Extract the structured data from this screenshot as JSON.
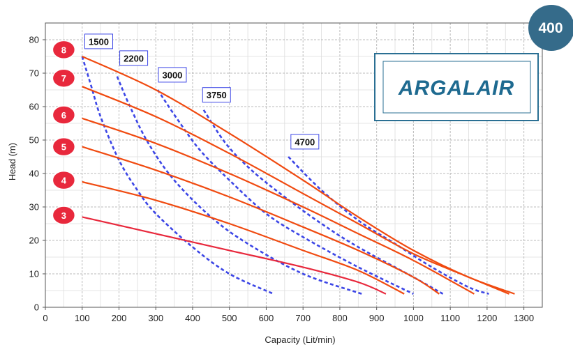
{
  "chart_data": {
    "type": "line",
    "title": "",
    "xlabel": "Capacity (Lit/min)",
    "ylabel": "Head (m)",
    "xlim": [
      0,
      1350
    ],
    "ylim": [
      0,
      85
    ],
    "x_ticks": [
      0,
      100,
      200,
      300,
      400,
      500,
      600,
      700,
      800,
      900,
      1000,
      1100,
      1200,
      1300
    ],
    "y_ticks": [
      0,
      10,
      20,
      30,
      40,
      50,
      60,
      70,
      80
    ],
    "grid": true,
    "series": [
      {
        "name": "8",
        "kind": "pressure",
        "color": "#f04a10",
        "x": [
          100,
          300,
          500,
          700,
          850,
          1000,
          1150,
          1275
        ],
        "y": [
          75,
          65,
          52,
          38,
          27,
          17,
          9,
          4
        ]
      },
      {
        "name": "7",
        "kind": "pressure",
        "color": "#f04a10",
        "x": [
          100,
          300,
          500,
          700,
          850,
          1000,
          1150,
          1260
        ],
        "y": [
          66,
          57,
          46,
          34,
          25,
          16,
          9,
          4
        ]
      },
      {
        "name": "6",
        "kind": "pressure",
        "color": "#f04a10",
        "x": [
          100,
          300,
          500,
          700,
          850,
          1000,
          1165
        ],
        "y": [
          56.5,
          49,
          40,
          30,
          22,
          14,
          4
        ]
      },
      {
        "name": "5",
        "kind": "pressure",
        "color": "#f04a10",
        "x": [
          100,
          300,
          500,
          700,
          850,
          1000,
          1070
        ],
        "y": [
          48,
          41,
          33,
          24,
          17,
          9,
          4
        ]
      },
      {
        "name": "4",
        "kind": "pressure",
        "color": "#f04a10",
        "x": [
          100,
          300,
          500,
          700,
          850,
          975
        ],
        "y": [
          37.5,
          32,
          25,
          17,
          11,
          4
        ]
      },
      {
        "name": "3",
        "kind": "pressure",
        "color": "#e8283c",
        "x": [
          100,
          300,
          500,
          700,
          850,
          925
        ],
        "y": [
          27,
          22,
          17,
          12,
          7.5,
          4
        ]
      },
      {
        "name": "1500",
        "kind": "air",
        "color": "#3c46e6",
        "x": [
          100,
          125,
          150,
          200,
          250,
          300,
          400,
          500,
          620
        ],
        "y": [
          75,
          66,
          57,
          44,
          35,
          28,
          18,
          10,
          4
        ]
      },
      {
        "name": "2200",
        "kind": "air",
        "color": "#3c46e6",
        "x": [
          195,
          230,
          280,
          350,
          450,
          550,
          700,
          860
        ],
        "y": [
          69,
          60,
          49,
          38,
          27,
          19,
          10,
          4
        ]
      },
      {
        "name": "3000",
        "kind": "air",
        "color": "#3c46e6",
        "x": [
          305,
          360,
          420,
          500,
          600,
          700,
          850,
          1000
        ],
        "y": [
          65,
          56,
          47,
          38,
          28,
          21,
          12,
          4
        ]
      },
      {
        "name": "3750",
        "kind": "air",
        "color": "#3c46e6",
        "x": [
          430,
          490,
          560,
          650,
          750,
          850,
          1000,
          1080
        ],
        "y": [
          59,
          49,
          41,
          33,
          25,
          18,
          9,
          4
        ]
      },
      {
        "name": "4700",
        "kind": "air",
        "color": "#3c46e6",
        "x": [
          660,
          750,
          850,
          950,
          1050,
          1150,
          1205
        ],
        "y": [
          45,
          35,
          26,
          19,
          12,
          6,
          4
        ]
      }
    ]
  },
  "pressure_labels": [
    {
      "text": "8",
      "y": 77
    },
    {
      "text": "7",
      "y": 68.5
    },
    {
      "text": "6",
      "y": 57.5
    },
    {
      "text": "5",
      "y": 48
    },
    {
      "text": "4",
      "y": 38
    },
    {
      "text": "3",
      "y": 27.5
    }
  ],
  "air_labels": [
    {
      "text": "1500",
      "x": 145,
      "y": 79.5
    },
    {
      "text": "2200",
      "x": 240,
      "y": 74.5
    },
    {
      "text": "3000",
      "x": 345,
      "y": 69.5
    },
    {
      "text": "3750",
      "x": 465,
      "y": 63.5
    },
    {
      "text": "4700",
      "x": 705,
      "y": 49.5
    }
  ],
  "badge": {
    "text": "400",
    "color": "#356b8a"
  },
  "logo": {
    "text": "ARGALAIR",
    "color": "#1e6a90"
  }
}
